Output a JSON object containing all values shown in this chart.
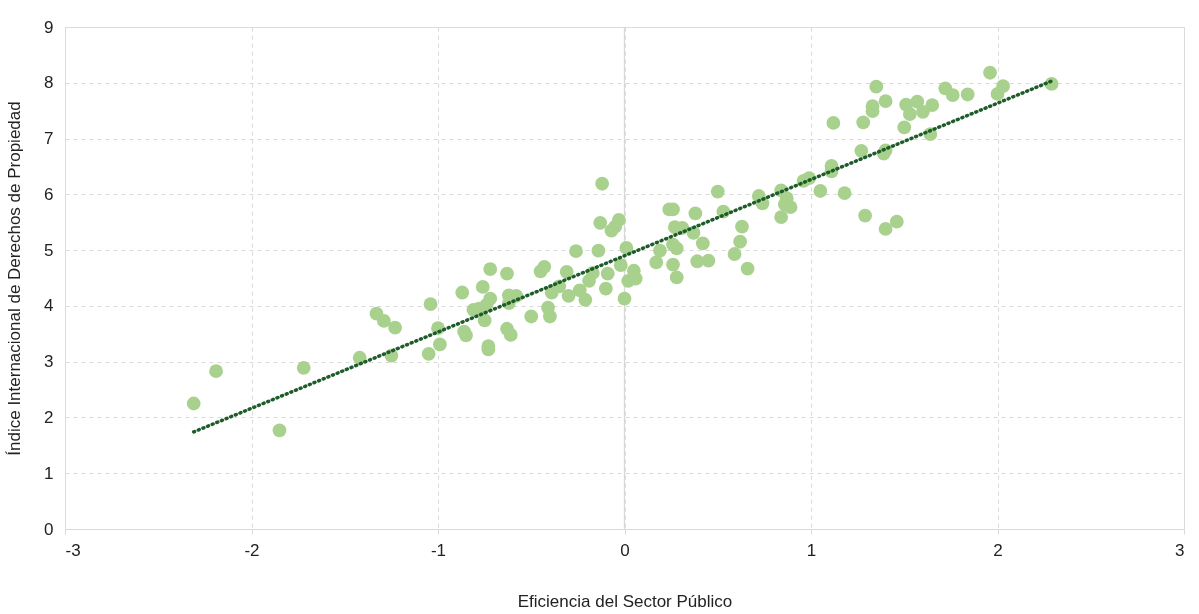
{
  "chart_data": {
    "type": "scatter",
    "xlabel": "Eficiencia del Sector Público",
    "ylabel": "Índice Internacional de Derechos de Propiedad",
    "xlim": [
      -3,
      3
    ],
    "xticks": [
      -3,
      -2,
      -1,
      0,
      1,
      2,
      3
    ],
    "ylim": [
      0,
      9
    ],
    "yticks": [
      0,
      1,
      2,
      3,
      4,
      5,
      6,
      7,
      8,
      9
    ],
    "grid": true,
    "ref_lines": [
      {
        "axis": "x",
        "value": 0,
        "color": "#d9d9d9",
        "line_style": "solid"
      }
    ],
    "series": [
      {
        "type": "scatter",
        "marker": "circle",
        "color": "#a9d18e",
        "x": [
          -2.31,
          -2.19,
          -1.85,
          -1.72,
          -1.42,
          -1.33,
          -1.29,
          -1.25,
          -1.23,
          -1.05,
          -1.04,
          -1.0,
          -0.99,
          -0.87,
          -0.86,
          -0.85,
          -0.81,
          -0.78,
          -0.76,
          -0.75,
          -0.74,
          -0.73,
          -0.73,
          -0.72,
          -0.72,
          -0.63,
          -0.63,
          -0.62,
          -0.62,
          -0.61,
          -0.58,
          -0.5,
          -0.45,
          -0.43,
          -0.41,
          -0.4,
          -0.39,
          -0.35,
          -0.31,
          -0.3,
          -0.26,
          -0.24,
          -0.21,
          -0.19,
          -0.17,
          -0.14,
          -0.13,
          -0.12,
          -0.1,
          -0.09,
          -0.07,
          -0.05,
          -0.03,
          -0.02,
          0.0,
          0.01,
          0.02,
          0.05,
          0.06,
          0.17,
          0.19,
          0.24,
          0.26,
          0.26,
          0.26,
          0.27,
          0.28,
          0.28,
          0.31,
          0.37,
          0.38,
          0.39,
          0.42,
          0.45,
          0.5,
          0.53,
          0.59,
          0.62,
          0.63,
          0.66,
          0.72,
          0.74,
          0.84,
          0.84,
          0.86,
          0.87,
          0.89,
          0.96,
          0.99,
          1.05,
          1.11,
          1.11,
          1.12,
          1.18,
          1.27,
          1.28,
          1.29,
          1.33,
          1.33,
          1.35,
          1.39,
          1.4,
          1.4,
          1.4,
          1.46,
          1.5,
          1.51,
          1.53,
          1.57,
          1.6,
          1.64,
          1.65,
          1.72,
          1.76,
          1.84,
          1.96,
          2.0,
          2.03,
          2.29
        ],
        "values": [
          2.25,
          2.83,
          1.77,
          2.89,
          3.07,
          3.86,
          3.73,
          3.11,
          3.61,
          3.14,
          4.03,
          3.6,
          3.31,
          4.24,
          3.54,
          3.47,
          3.93,
          3.95,
          4.34,
          3.74,
          4.02,
          3.28,
          3.22,
          4.66,
          4.13,
          4.58,
          3.59,
          4.19,
          4.05,
          3.48,
          4.18,
          3.81,
          4.62,
          4.7,
          3.97,
          3.81,
          4.24,
          4.35,
          4.61,
          4.18,
          4.98,
          4.28,
          4.11,
          4.45,
          4.59,
          4.99,
          5.49,
          6.19,
          4.31,
          4.58,
          5.35,
          5.42,
          5.54,
          4.73,
          4.13,
          5.04,
          4.45,
          4.63,
          4.49,
          4.78,
          4.99,
          5.73,
          5.73,
          5.1,
          4.74,
          5.41,
          5.03,
          4.51,
          5.4,
          5.31,
          5.66,
          4.8,
          5.12,
          4.81,
          6.05,
          5.69,
          4.93,
          5.15,
          5.42,
          4.67,
          5.97,
          5.84,
          6.07,
          5.59,
          5.82,
          5.93,
          5.77,
          6.24,
          6.29,
          6.06,
          6.51,
          6.41,
          7.28,
          6.02,
          6.78,
          7.29,
          5.62,
          7.49,
          7.58,
          7.93,
          6.73,
          6.79,
          5.38,
          7.67,
          5.51,
          7.2,
          7.61,
          7.44,
          7.66,
          7.48,
          7.08,
          7.6,
          7.9,
          7.78,
          7.79,
          8.18,
          7.8,
          7.94,
          7.98
        ]
      },
      {
        "type": "line",
        "color": "#1e5c2a",
        "line_style": "dotted",
        "x": [
          -2.31,
          2.29
        ],
        "values": [
          1.74,
          8.03
        ]
      }
    ]
  }
}
